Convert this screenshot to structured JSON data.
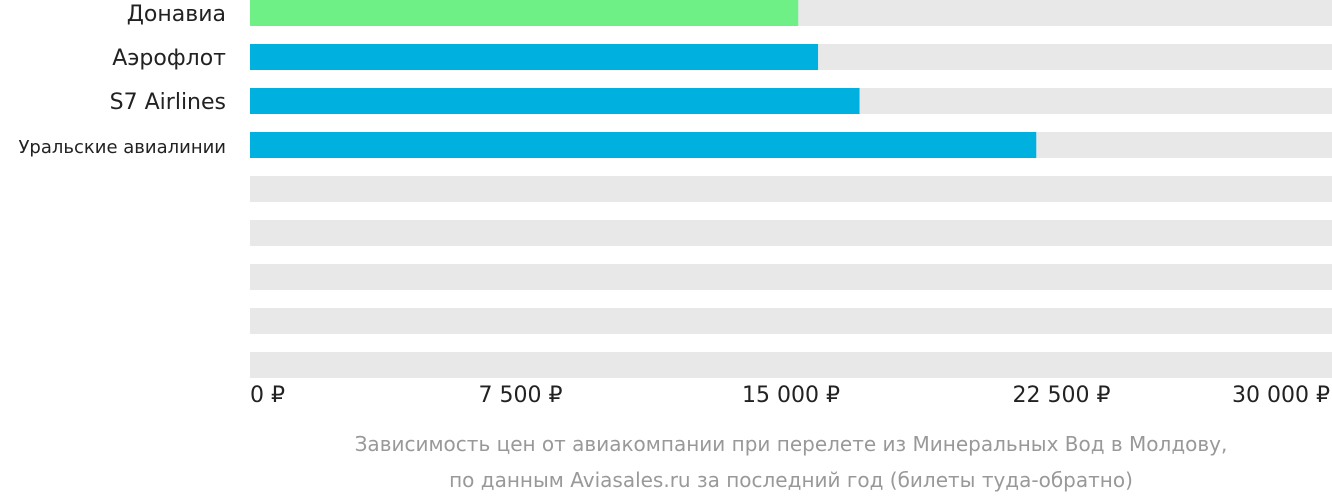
{
  "chart_data": {
    "type": "bar",
    "orientation": "horizontal",
    "categories": [
      "Донавиа",
      "Аэрофлот",
      "S7 Airlines",
      "Уральские авиалинии",
      "",
      "",
      "",
      "",
      ""
    ],
    "values": [
      15200,
      15750,
      16900,
      21800,
      null,
      null,
      null,
      null,
      null
    ],
    "highlight_index": 0,
    "xlim": [
      0,
      30000
    ],
    "xticks": [
      0,
      7500,
      15000,
      22500,
      30000
    ],
    "xtick_labels": [
      "0 ₽",
      "7 500 ₽",
      "15 000 ₽",
      "22 500 ₽",
      "30 000 ₽"
    ],
    "grid": false,
    "colors": {
      "bar": "#00b0de",
      "highlight": "#6ef087",
      "track": "#e8e8e8",
      "text": "#222222",
      "caption": "#999999"
    }
  },
  "caption": {
    "line1": "Зависимость цен от авиакомпании при перелете из Минеральных Вод в Молдову,",
    "line2": "по данным Aviasales.ru за последний год (билеты туда-обратно)"
  }
}
